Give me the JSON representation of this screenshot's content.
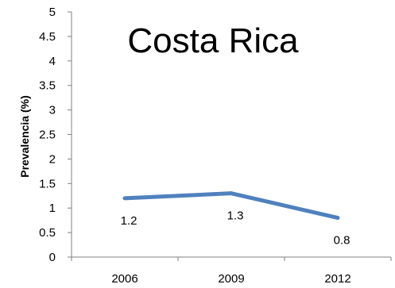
{
  "chart_data": {
    "type": "line",
    "title": "Costa Rica",
    "ylabel": "Prevalencia (%)",
    "xlabel": "",
    "categories": [
      "2006",
      "2009",
      "2012"
    ],
    "series": [
      {
        "values": [
          1.2,
          1.3,
          0.8
        ],
        "color": "#4f81bd"
      }
    ],
    "data_labels": [
      "1.2",
      "1.3",
      "0.8"
    ],
    "ylim": [
      0,
      5
    ],
    "yticks": [
      "0",
      "0.5",
      "1",
      "1.5",
      "2",
      "2.5",
      "3",
      "3.5",
      "4",
      "4.5",
      "5"
    ],
    "grid": false,
    "legend": "none"
  }
}
